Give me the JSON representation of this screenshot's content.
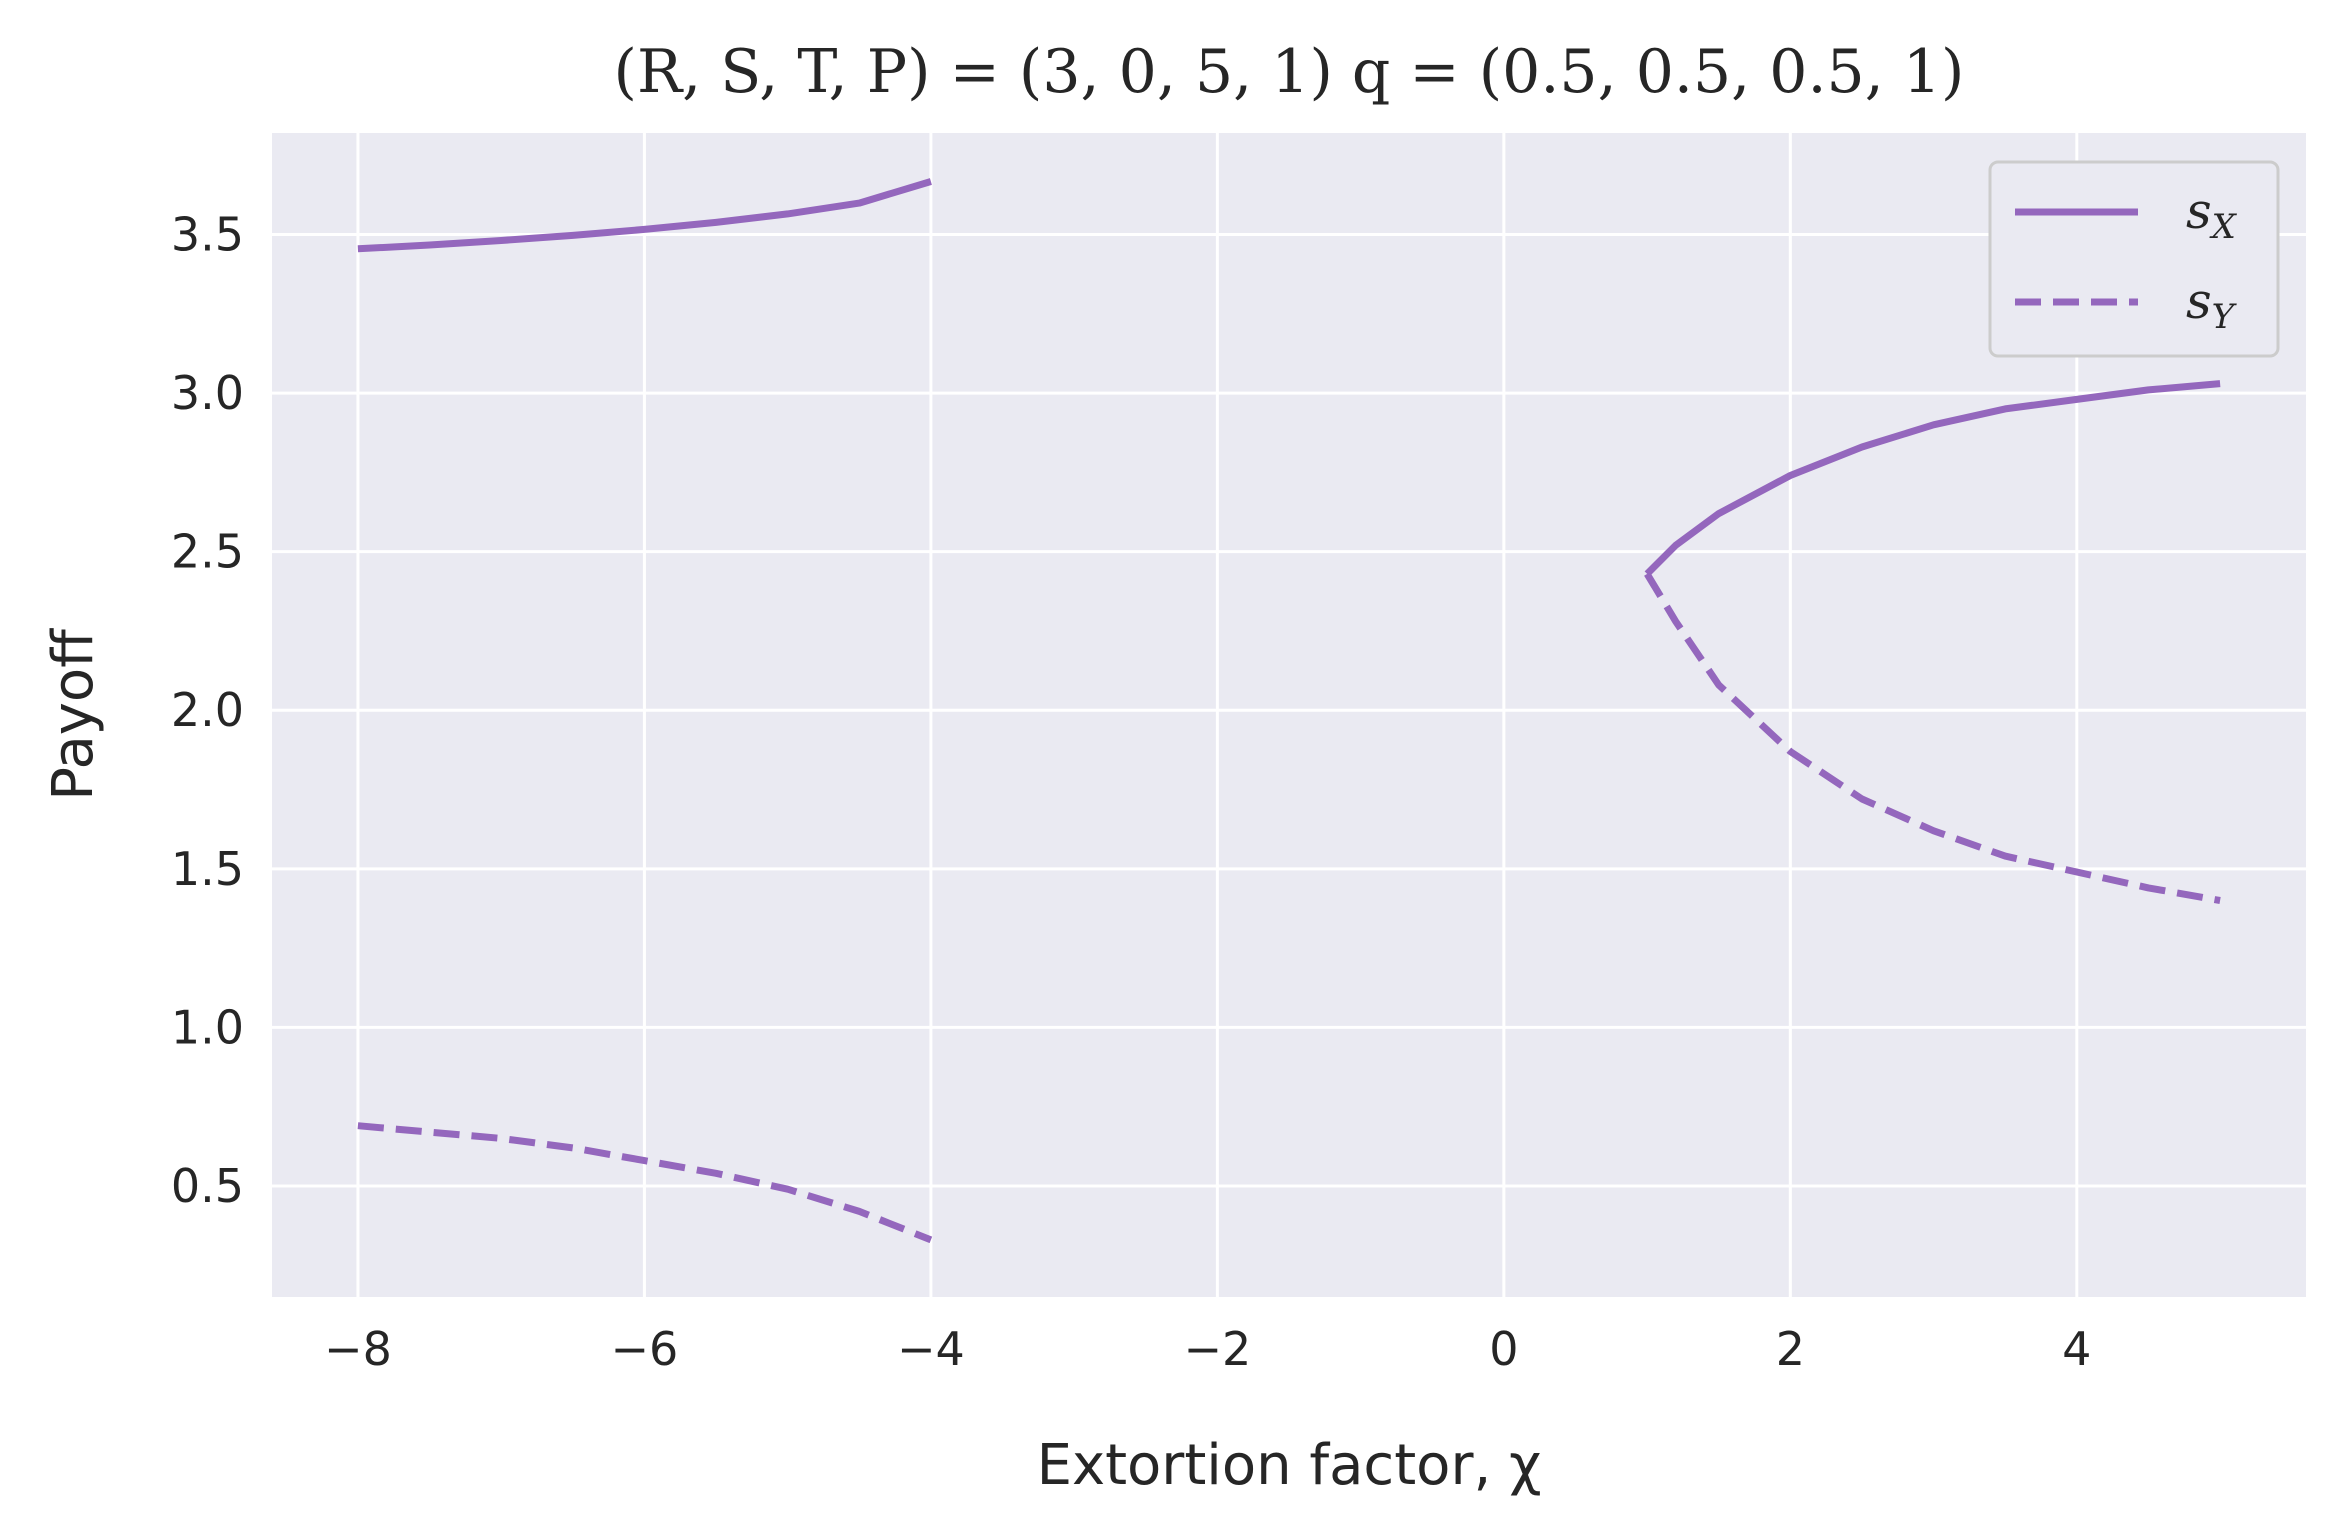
{
  "chart_data": {
    "type": "line",
    "title": "(R, S, T, P) = (3, 0, 5, 1)    q = (0.5, 0.5, 0.5, 1)",
    "xlabel": "Extortion factor, χ",
    "ylabel": "Payoff",
    "xlim": [
      -8.6,
      5.6
    ],
    "ylim": [
      0.15,
      3.82
    ],
    "xticks": [
      -8,
      -6,
      -4,
      -2,
      0,
      2,
      4
    ],
    "xtick_labels": [
      "−8",
      "−6",
      "−4",
      "−2",
      "0",
      "2",
      "4"
    ],
    "yticks": [
      0.5,
      1.0,
      1.5,
      2.0,
      2.5,
      3.0,
      3.5
    ],
    "ytick_labels": [
      "0.5",
      "1.0",
      "1.5",
      "2.0",
      "2.5",
      "3.0",
      "3.5"
    ],
    "grid": true,
    "legend_position": "top-right",
    "colors": {
      "series": "#9467bd",
      "plot_bg": "#eaeaf2",
      "grid": "#ffffff"
    },
    "series": [
      {
        "name": "sX",
        "style": "solid",
        "segments": [
          [
            [
              -8,
              3.455
            ],
            [
              -7.5,
              3.467
            ],
            [
              -7,
              3.481
            ],
            [
              -6.5,
              3.497
            ],
            [
              -6,
              3.516
            ],
            [
              -5.5,
              3.538
            ],
            [
              -5,
              3.565
            ],
            [
              -4.5,
              3.599
            ],
            [
              -4,
              3.667
            ]
          ],
          [
            [
              1,
              2.43
            ],
            [
              1.2,
              2.52
            ],
            [
              1.5,
              2.62
            ],
            [
              2,
              2.74
            ],
            [
              2.5,
              2.83
            ],
            [
              3,
              2.9
            ],
            [
              3.5,
              2.95
            ],
            [
              4,
              2.98
            ],
            [
              4.5,
              3.01
            ],
            [
              5,
              3.03
            ]
          ]
        ]
      },
      {
        "name": "sY",
        "style": "dashed",
        "segments": [
          [
            [
              -8,
              0.69
            ],
            [
              -7.5,
              0.67
            ],
            [
              -7,
              0.65
            ],
            [
              -6.5,
              0.62
            ],
            [
              -6,
              0.58
            ],
            [
              -5.5,
              0.54
            ],
            [
              -5,
              0.49
            ],
            [
              -4.5,
              0.42
            ],
            [
              -4,
              0.33
            ]
          ],
          [
            [
              1,
              2.43
            ],
            [
              1.2,
              2.28
            ],
            [
              1.5,
              2.08
            ],
            [
              2,
              1.87
            ],
            [
              2.5,
              1.72
            ],
            [
              3,
              1.62
            ],
            [
              3.5,
              1.54
            ],
            [
              4,
              1.49
            ],
            [
              4.5,
              1.44
            ],
            [
              5,
              1.4
            ]
          ]
        ]
      }
    ]
  }
}
